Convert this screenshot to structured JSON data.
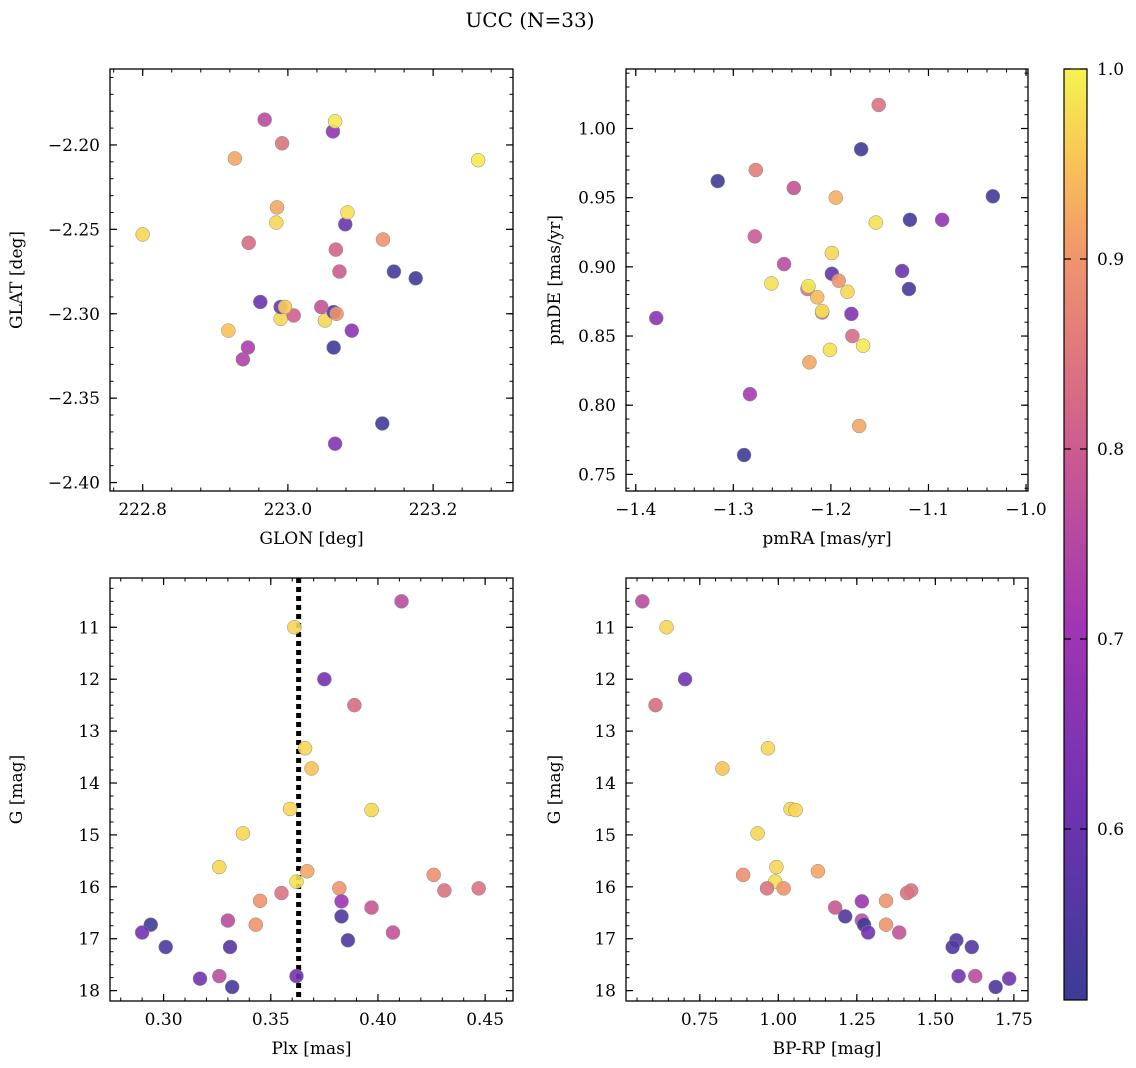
{
  "title": "UCC (N=33)",
  "chart_data": [
    {
      "type": "scatter",
      "id": "glon-glat",
      "xlabel": "GLON [deg]",
      "ylabel": "GLAT [deg]",
      "xlim": [
        222.755,
        223.31
      ],
      "ylim": [
        -2.405,
        -2.155
      ],
      "xticks": [
        222.8,
        223.0,
        223.2
      ],
      "xtick_labels": [
        "222.8",
        "223.0",
        "223.2"
      ],
      "yticks": [
        -2.2,
        -2.25,
        -2.3,
        -2.35,
        -2.4
      ],
      "ytick_labels": [
        "−2.20",
        "−2.25",
        "−2.30",
        "−2.35",
        "−2.40"
      ],
      "points": [
        {
          "x": 223.13,
          "y": -2.365,
          "c": 0.52
        },
        {
          "x": 223.065,
          "y": -2.377,
          "c": 0.65
        },
        {
          "x": 223.063,
          "y": -2.32,
          "c": 0.52
        },
        {
          "x": 222.938,
          "y": -2.327,
          "c": 0.74
        },
        {
          "x": 222.945,
          "y": -2.32,
          "c": 0.73
        },
        {
          "x": 222.918,
          "y": -2.31,
          "c": 0.95
        },
        {
          "x": 223.088,
          "y": -2.31,
          "c": 0.67
        },
        {
          "x": 222.99,
          "y": -2.303,
          "c": 0.97
        },
        {
          "x": 223.008,
          "y": -2.301,
          "c": 0.81
        },
        {
          "x": 223.051,
          "y": -2.304,
          "c": 0.97
        },
        {
          "x": 223.063,
          "y": -2.299,
          "c": 0.55
        },
        {
          "x": 223.067,
          "y": -2.3,
          "c": 0.9
        },
        {
          "x": 222.99,
          "y": -2.296,
          "c": 0.6
        },
        {
          "x": 222.996,
          "y": -2.296,
          "c": 0.96
        },
        {
          "x": 223.046,
          "y": -2.296,
          "c": 0.78
        },
        {
          "x": 222.962,
          "y": -2.293,
          "c": 0.6
        },
        {
          "x": 223.146,
          "y": -2.275,
          "c": 0.53
        },
        {
          "x": 223.071,
          "y": -2.275,
          "c": 0.8
        },
        {
          "x": 223.176,
          "y": -2.279,
          "c": 0.52
        },
        {
          "x": 223.066,
          "y": -2.262,
          "c": 0.82
        },
        {
          "x": 222.946,
          "y": -2.258,
          "c": 0.83
        },
        {
          "x": 222.8,
          "y": -2.253,
          "c": 0.97
        },
        {
          "x": 223.131,
          "y": -2.256,
          "c": 0.9
        },
        {
          "x": 223.079,
          "y": -2.247,
          "c": 0.6
        },
        {
          "x": 222.984,
          "y": -2.246,
          "c": 0.97
        },
        {
          "x": 222.985,
          "y": -2.237,
          "c": 0.92
        },
        {
          "x": 223.082,
          "y": -2.24,
          "c": 0.98
        },
        {
          "x": 222.927,
          "y": -2.208,
          "c": 0.92
        },
        {
          "x": 222.992,
          "y": -2.199,
          "c": 0.84
        },
        {
          "x": 223.262,
          "y": -2.209,
          "c": 0.99
        },
        {
          "x": 223.062,
          "y": -2.192,
          "c": 0.68
        },
        {
          "x": 222.968,
          "y": -2.185,
          "c": 0.76
        },
        {
          "x": 223.065,
          "y": -2.186,
          "c": 0.99
        }
      ]
    },
    {
      "type": "scatter",
      "id": "pmra-pmde",
      "xlabel": "pmRA [mas/yr]",
      "ylabel": "pmDE [mas/yr]",
      "xlim": [
        -1.41,
        -0.998
      ],
      "ylim": [
        0.738,
        1.043
      ],
      "xticks": [
        -1.4,
        -1.3,
        -1.2,
        -1.1,
        -1.0
      ],
      "xtick_labels": [
        "−1.4",
        "−1.3",
        "−1.2",
        "−1.1",
        "−1.0"
      ],
      "yticks": [
        0.75,
        0.8,
        0.85,
        0.9,
        0.95,
        1.0
      ],
      "ytick_labels": [
        "0.75",
        "0.80",
        "0.85",
        "0.90",
        "0.95",
        "1.00"
      ],
      "points": [
        {
          "x": -1.151,
          "y": 1.017,
          "c": 0.84
        },
        {
          "x": -1.169,
          "y": 0.985,
          "c": 0.52
        },
        {
          "x": -1.277,
          "y": 0.97,
          "c": 0.86
        },
        {
          "x": -1.316,
          "y": 0.962,
          "c": 0.52
        },
        {
          "x": -1.238,
          "y": 0.957,
          "c": 0.78
        },
        {
          "x": -1.195,
          "y": 0.95,
          "c": 0.93
        },
        {
          "x": -1.034,
          "y": 0.951,
          "c": 0.53
        },
        {
          "x": -1.119,
          "y": 0.934,
          "c": 0.53
        },
        {
          "x": -1.154,
          "y": 0.932,
          "c": 0.98
        },
        {
          "x": -1.086,
          "y": 0.934,
          "c": 0.68
        },
        {
          "x": -1.278,
          "y": 0.922,
          "c": 0.8
        },
        {
          "x": -1.199,
          "y": 0.91,
          "c": 0.97
        },
        {
          "x": -1.248,
          "y": 0.902,
          "c": 0.76
        },
        {
          "x": -1.127,
          "y": 0.897,
          "c": 0.6
        },
        {
          "x": -1.199,
          "y": 0.895,
          "c": 0.58
        },
        {
          "x": -1.192,
          "y": 0.89,
          "c": 0.9
        },
        {
          "x": -1.261,
          "y": 0.888,
          "c": 0.98
        },
        {
          "x": -1.224,
          "y": 0.884,
          "c": 0.84
        },
        {
          "x": -1.223,
          "y": 0.886,
          "c": 0.99
        },
        {
          "x": -1.12,
          "y": 0.884,
          "c": 0.53
        },
        {
          "x": -1.183,
          "y": 0.882,
          "c": 0.97
        },
        {
          "x": -1.214,
          "y": 0.878,
          "c": 0.94
        },
        {
          "x": -1.209,
          "y": 0.867,
          "c": 0.83
        },
        {
          "x": -1.209,
          "y": 0.868,
          "c": 0.98
        },
        {
          "x": -1.179,
          "y": 0.866,
          "c": 0.65
        },
        {
          "x": -1.379,
          "y": 0.863,
          "c": 0.66
        },
        {
          "x": -1.178,
          "y": 0.85,
          "c": 0.83
        },
        {
          "x": -1.167,
          "y": 0.843,
          "c": 0.99
        },
        {
          "x": -1.201,
          "y": 0.84,
          "c": 0.98
        },
        {
          "x": -1.222,
          "y": 0.831,
          "c": 0.92
        },
        {
          "x": -1.283,
          "y": 0.808,
          "c": 0.72
        },
        {
          "x": -1.171,
          "y": 0.785,
          "c": 0.92
        },
        {
          "x": -1.289,
          "y": 0.764,
          "c": 0.52
        }
      ]
    },
    {
      "type": "scatter",
      "id": "plx-g",
      "xlabel": "Plx [mas]",
      "ylabel": "G [mag]",
      "xlim": [
        0.275,
        0.463
      ],
      "ylim": [
        18.2,
        10.05
      ],
      "xticks": [
        0.3,
        0.35,
        0.4,
        0.45
      ],
      "xtick_labels": [
        "0.30",
        "0.35",
        "0.40",
        "0.45"
      ],
      "yticks": [
        11,
        12,
        13,
        14,
        15,
        16,
        17,
        18
      ],
      "ytick_labels": [
        "11",
        "12",
        "13",
        "14",
        "15",
        "16",
        "17",
        "18"
      ],
      "vline": {
        "x": 0.363,
        "style": "dotted"
      },
      "points": [
        {
          "x": 0.411,
          "y": 10.5,
          "c": 0.76
        },
        {
          "x": 0.361,
          "y": 11.0,
          "c": 0.97
        },
        {
          "x": 0.375,
          "y": 12.0,
          "c": 0.62
        },
        {
          "x": 0.389,
          "y": 12.5,
          "c": 0.83
        },
        {
          "x": 0.366,
          "y": 13.33,
          "c": 0.97
        },
        {
          "x": 0.369,
          "y": 13.72,
          "c": 0.95
        },
        {
          "x": 0.359,
          "y": 14.5,
          "c": 0.97
        },
        {
          "x": 0.397,
          "y": 14.52,
          "c": 0.97
        },
        {
          "x": 0.337,
          "y": 14.97,
          "c": 0.97
        },
        {
          "x": 0.326,
          "y": 15.62,
          "c": 0.97
        },
        {
          "x": 0.367,
          "y": 15.7,
          "c": 0.92
        },
        {
          "x": 0.426,
          "y": 15.77,
          "c": 0.89
        },
        {
          "x": 0.362,
          "y": 15.9,
          "c": 0.98
        },
        {
          "x": 0.382,
          "y": 16.03,
          "c": 0.9
        },
        {
          "x": 0.447,
          "y": 16.03,
          "c": 0.84
        },
        {
          "x": 0.431,
          "y": 16.07,
          "c": 0.84
        },
        {
          "x": 0.355,
          "y": 16.12,
          "c": 0.84
        },
        {
          "x": 0.345,
          "y": 16.27,
          "c": 0.9
        },
        {
          "x": 0.383,
          "y": 16.28,
          "c": 0.7
        },
        {
          "x": 0.397,
          "y": 16.4,
          "c": 0.79
        },
        {
          "x": 0.383,
          "y": 16.57,
          "c": 0.55
        },
        {
          "x": 0.33,
          "y": 16.65,
          "c": 0.76
        },
        {
          "x": 0.294,
          "y": 16.73,
          "c": 0.52
        },
        {
          "x": 0.343,
          "y": 16.73,
          "c": 0.9
        },
        {
          "x": 0.29,
          "y": 16.88,
          "c": 0.62
        },
        {
          "x": 0.407,
          "y": 16.88,
          "c": 0.78
        },
        {
          "x": 0.386,
          "y": 17.03,
          "c": 0.55
        },
        {
          "x": 0.301,
          "y": 17.16,
          "c": 0.55
        },
        {
          "x": 0.331,
          "y": 17.16,
          "c": 0.56
        },
        {
          "x": 0.317,
          "y": 17.77,
          "c": 0.62
        },
        {
          "x": 0.326,
          "y": 17.72,
          "c": 0.76
        },
        {
          "x": 0.362,
          "y": 17.72,
          "c": 0.62
        },
        {
          "x": 0.332,
          "y": 17.93,
          "c": 0.54
        }
      ]
    },
    {
      "type": "scatter",
      "id": "bprp-g",
      "xlabel": "BP-RP [mag]",
      "ylabel": "G [mag]",
      "xlim": [
        0.515,
        1.795
      ],
      "ylim": [
        18.2,
        10.05
      ],
      "xticks": [
        0.75,
        1.0,
        1.25,
        1.5,
        1.75
      ],
      "xtick_labels": [
        "0.75",
        "1.00",
        "1.25",
        "1.50",
        "1.75"
      ],
      "yticks": [
        11,
        12,
        13,
        14,
        15,
        16,
        17,
        18
      ],
      "ytick_labels": [
        "11",
        "12",
        "13",
        "14",
        "15",
        "16",
        "17",
        "18"
      ],
      "points": [
        {
          "x": 0.567,
          "y": 10.5,
          "c": 0.76
        },
        {
          "x": 0.644,
          "y": 11.0,
          "c": 0.97
        },
        {
          "x": 0.703,
          "y": 12.0,
          "c": 0.62
        },
        {
          "x": 0.609,
          "y": 12.5,
          "c": 0.83
        },
        {
          "x": 0.967,
          "y": 13.33,
          "c": 0.97
        },
        {
          "x": 0.822,
          "y": 13.72,
          "c": 0.95
        },
        {
          "x": 1.039,
          "y": 14.5,
          "c": 0.97
        },
        {
          "x": 1.055,
          "y": 14.52,
          "c": 0.97
        },
        {
          "x": 0.934,
          "y": 14.97,
          "c": 0.97
        },
        {
          "x": 0.994,
          "y": 15.62,
          "c": 0.97
        },
        {
          "x": 1.126,
          "y": 15.7,
          "c": 0.92
        },
        {
          "x": 0.888,
          "y": 15.77,
          "c": 0.89
        },
        {
          "x": 0.99,
          "y": 15.9,
          "c": 0.98
        },
        {
          "x": 0.964,
          "y": 16.03,
          "c": 0.84
        },
        {
          "x": 1.017,
          "y": 16.03,
          "c": 0.9
        },
        {
          "x": 1.423,
          "y": 16.07,
          "c": 0.84
        },
        {
          "x": 1.41,
          "y": 16.12,
          "c": 0.84
        },
        {
          "x": 1.343,
          "y": 16.27,
          "c": 0.9
        },
        {
          "x": 1.266,
          "y": 16.28,
          "c": 0.7
        },
        {
          "x": 1.181,
          "y": 16.4,
          "c": 0.79
        },
        {
          "x": 1.213,
          "y": 16.57,
          "c": 0.55
        },
        {
          "x": 1.266,
          "y": 16.65,
          "c": 0.76
        },
        {
          "x": 1.343,
          "y": 16.73,
          "c": 0.9
        },
        {
          "x": 1.273,
          "y": 16.73,
          "c": 0.52
        },
        {
          "x": 1.286,
          "y": 16.88,
          "c": 0.62
        },
        {
          "x": 1.385,
          "y": 16.88,
          "c": 0.78
        },
        {
          "x": 1.567,
          "y": 17.03,
          "c": 0.55
        },
        {
          "x": 1.555,
          "y": 17.16,
          "c": 0.55
        },
        {
          "x": 1.616,
          "y": 17.16,
          "c": 0.56
        },
        {
          "x": 1.735,
          "y": 17.77,
          "c": 0.62
        },
        {
          "x": 1.627,
          "y": 17.72,
          "c": 0.76
        },
        {
          "x": 1.574,
          "y": 17.72,
          "c": 0.62
        },
        {
          "x": 1.692,
          "y": 17.93,
          "c": 0.54
        }
      ]
    }
  ],
  "colorbar": {
    "colormap": "plasma",
    "range": [
      0.51,
      1.0
    ],
    "ticks": [
      0.6,
      0.7,
      0.8,
      0.9,
      1.0
    ],
    "tick_labels": [
      "0.6",
      "0.7",
      "0.8",
      "0.9",
      "1.0"
    ]
  }
}
